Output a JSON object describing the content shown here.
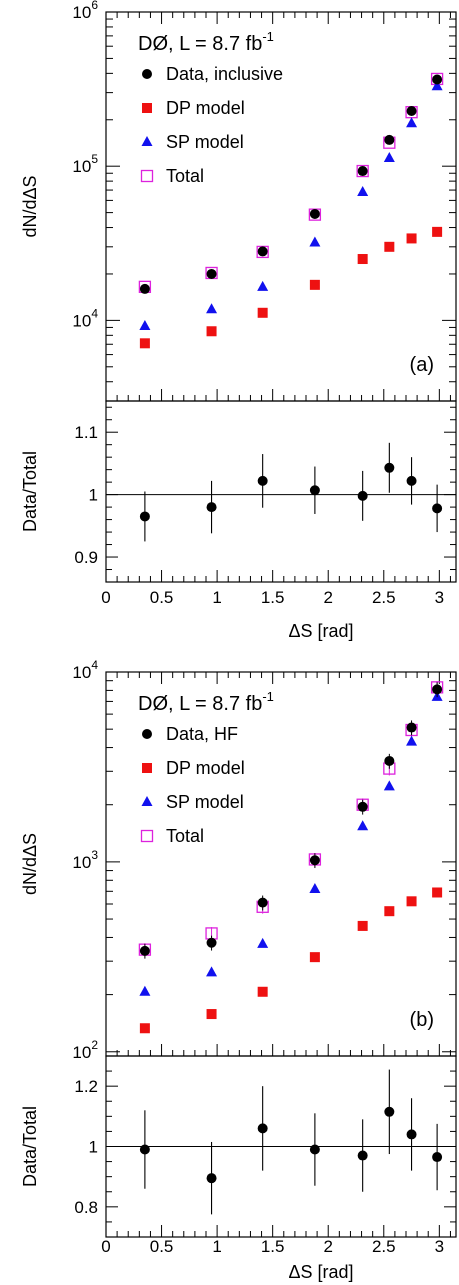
{
  "chart_data": [
    {
      "type": "scatter",
      "panel_label": "(a)",
      "experiment_label": "DØ, L = 8.7 fb",
      "experiment_label_sup": "-1",
      "xlabel": "ΔS [rad]",
      "ylabel": "dN/dΔS",
      "ratio_ylabel": "Data/Total",
      "yscale": "log",
      "ylim": [
        3000,
        1000000
      ],
      "xlim": [
        0,
        3.15
      ],
      "ratio_ylim": [
        0.86,
        1.15
      ],
      "x_ticks": [
        "0",
        "0.5",
        "1",
        "1.5",
        "2",
        "2.5",
        "3"
      ],
      "y_tick_labels": [
        {
          "base": "10",
          "exp": "4"
        },
        {
          "base": "10",
          "exp": "5"
        },
        {
          "base": "10",
          "exp": "6"
        }
      ],
      "ratio_ticks": [
        "0.9",
        "1",
        "1.1"
      ],
      "legend_position": "top-left",
      "x": [
        0.35,
        0.95,
        1.41,
        1.88,
        2.31,
        2.55,
        2.75,
        2.98
      ],
      "series": [
        {
          "name": "Data, inclusive",
          "marker": "circle",
          "color": "#000000",
          "values": [
            16000,
            20000,
            28000,
            49000,
            93000,
            148000,
            228000,
            365000
          ]
        },
        {
          "name": "DP model",
          "marker": "square",
          "color": "#ee1111",
          "values": [
            7100,
            8500,
            11200,
            17000,
            25000,
            30000,
            34000,
            37500
          ]
        },
        {
          "name": "SP model",
          "marker": "triangle",
          "color": "#1111ee",
          "values": [
            9200,
            11800,
            16500,
            32000,
            68000,
            113000,
            190000,
            330000
          ]
        },
        {
          "name": "Total",
          "marker": "open-square",
          "color": "#dd22dd",
          "values": [
            16500,
            20300,
            27800,
            48500,
            93000,
            142000,
            224000,
            368000
          ]
        }
      ],
      "ratio": {
        "values": [
          0.965,
          0.98,
          1.022,
          1.007,
          0.998,
          1.043,
          1.022,
          0.978
        ],
        "errors": [
          0.04,
          0.042,
          0.043,
          0.038,
          0.04,
          0.04,
          0.038,
          0.038
        ]
      }
    },
    {
      "type": "scatter",
      "panel_label": "(b)",
      "experiment_label": "DØ, L = 8.7 fb",
      "experiment_label_sup": "-1",
      "xlabel": "ΔS [rad]",
      "ylabel": "dN/dΔS",
      "ratio_ylabel": "Data/Total",
      "yscale": "log",
      "ylim": [
        95,
        10000
      ],
      "xlim": [
        0,
        3.15
      ],
      "ratio_ylim": [
        0.7,
        1.3
      ],
      "x_ticks": [
        "0",
        "0.5",
        "1",
        "1.5",
        "2",
        "2.5",
        "3"
      ],
      "y_tick_labels": [
        {
          "base": "10",
          "exp": "2"
        },
        {
          "base": "10",
          "exp": "3"
        },
        {
          "base": "10",
          "exp": "4"
        }
      ],
      "ratio_ticks": [
        "0.8",
        "1",
        "1.2"
      ],
      "legend_position": "top-left",
      "x": [
        0.35,
        0.95,
        1.41,
        1.88,
        2.31,
        2.55,
        2.75,
        2.98
      ],
      "series": [
        {
          "name": "Data, HF",
          "marker": "circle",
          "color": "#000000",
          "values": [
            340,
            375,
            610,
            1020,
            1950,
            3400,
            5100,
            8100
          ]
        },
        {
          "name": "DP model",
          "marker": "square",
          "color": "#ee1111",
          "values": [
            133,
            158,
            207,
            315,
            460,
            550,
            620,
            690
          ]
        },
        {
          "name": "SP model",
          "marker": "triangle",
          "color": "#1111ee",
          "values": [
            207,
            262,
            370,
            720,
            1540,
            2500,
            4300,
            7400
          ]
        },
        {
          "name": "Total",
          "marker": "open-square",
          "color": "#dd22dd",
          "values": [
            345,
            420,
            580,
            1030,
            2000,
            3100,
            4950,
            8300
          ]
        }
      ],
      "ratio": {
        "values": [
          0.99,
          0.895,
          1.06,
          0.99,
          0.97,
          1.115,
          1.04,
          0.965
        ],
        "errors": [
          0.13,
          0.12,
          0.14,
          0.12,
          0.12,
          0.14,
          0.12,
          0.11
        ]
      }
    }
  ]
}
